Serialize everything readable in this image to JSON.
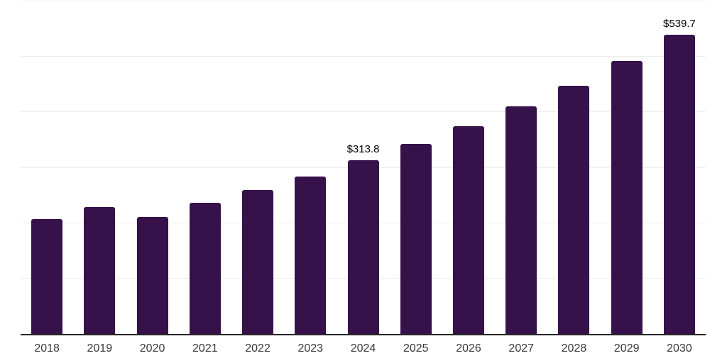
{
  "chart_data": {
    "type": "bar",
    "title": "",
    "xlabel": "",
    "ylabel": "",
    "categories": [
      "2018",
      "2019",
      "2020",
      "2021",
      "2022",
      "2023",
      "2024",
      "2025",
      "2026",
      "2027",
      "2028",
      "2029",
      "2030"
    ],
    "values": [
      207.2,
      229.0,
      211.1,
      236.7,
      259.7,
      284.0,
      313.8,
      342.8,
      374.8,
      410.7,
      447.7,
      492.5,
      539.7
    ],
    "data_labels": [
      {
        "category": "2024",
        "text": "$313.8"
      },
      {
        "category": "2030",
        "text": "$539.7"
      }
    ],
    "ylim": [
      0,
      600
    ],
    "gridline_interval": 100,
    "grid": "horizontal gridlines only, no y-axis tick labels",
    "legend": "none",
    "colors": {
      "bar": "#36114A",
      "gridline": "#ededed",
      "axis_line": "#262626",
      "x_label_text": "#383838",
      "value_label_text": "#000000",
      "background": "#ffffff"
    }
  }
}
